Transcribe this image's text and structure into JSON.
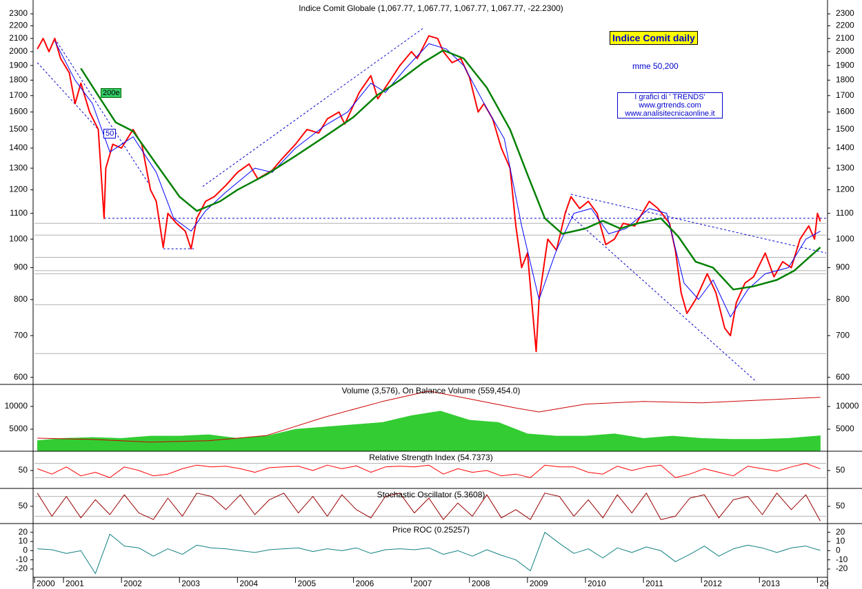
{
  "chart_data": [
    {
      "type": "line",
      "title": "Indice Comit Globale (1,067.77, 1,067.77, 1,067.77, 1,067.77, -22.2300)",
      "log_scale": true,
      "xlim": [
        2000.5,
        2014.15
      ],
      "ylim": [
        586,
        2390
      ],
      "yticks": [
        600,
        700,
        800,
        900,
        1000,
        1100,
        1200,
        1300,
        1400,
        1500,
        1600,
        1700,
        1800,
        1900,
        2000,
        2100,
        2200,
        2300
      ],
      "series": [
        {
          "color": "#ff0000",
          "style": "line",
          "width": 2,
          "x": [
            2000.55,
            2000.65,
            2000.75,
            2000.85,
            2000.95,
            2001.1,
            2001.2,
            2001.3,
            2001.45,
            2001.6,
            2001.7,
            2001.73,
            2001.85,
            2002.0,
            2002.2,
            2002.35,
            2002.5,
            2002.6,
            2002.72,
            2002.8,
            2002.95,
            2003.1,
            2003.2,
            2003.3,
            2003.45,
            2003.6,
            2003.8,
            2004.0,
            2004.2,
            2004.35,
            2004.6,
            2004.75,
            2005.0,
            2005.2,
            2005.4,
            2005.55,
            2005.75,
            2005.85,
            2006.1,
            2006.3,
            2006.42,
            2006.6,
            2006.8,
            2007.0,
            2007.1,
            2007.3,
            2007.45,
            2007.55,
            2007.7,
            2007.85,
            2008.0,
            2008.15,
            2008.25,
            2008.4,
            2008.55,
            2008.7,
            2008.8,
            2008.9,
            2009.0,
            2009.15,
            2009.2,
            2009.35,
            2009.5,
            2009.65,
            2009.75,
            2009.9,
            2010.05,
            2010.2,
            2010.35,
            2010.5,
            2010.65,
            2010.85,
            2011.1,
            2011.25,
            2011.45,
            2011.55,
            2011.65,
            2011.75,
            2011.9,
            2012.1,
            2012.25,
            2012.4,
            2012.5,
            2012.6,
            2012.75,
            2012.9,
            2013.1,
            2013.25,
            2013.4,
            2013.55,
            2013.7,
            2013.85,
            2013.95,
            2014.0,
            2014.05
          ],
          "values": [
            2020,
            2100,
            2000,
            2100,
            1950,
            1850,
            1650,
            1780,
            1600,
            1500,
            1080,
            1300,
            1420,
            1400,
            1500,
            1420,
            1200,
            1150,
            970,
            1100,
            1060,
            1030,
            965,
            1080,
            1150,
            1170,
            1220,
            1280,
            1320,
            1250,
            1290,
            1340,
            1420,
            1500,
            1480,
            1560,
            1600,
            1530,
            1720,
            1830,
            1680,
            1780,
            1900,
            2000,
            1950,
            2120,
            2100,
            2000,
            1920,
            1950,
            1820,
            1600,
            1650,
            1560,
            1400,
            1300,
            1050,
            900,
            950,
            660,
            800,
            1000,
            960,
            1100,
            1170,
            1120,
            1150,
            1100,
            980,
            1000,
            1060,
            1050,
            1150,
            1120,
            1060,
            960,
            820,
            760,
            800,
            880,
            820,
            720,
            700,
            790,
            850,
            870,
            950,
            870,
            920,
            900,
            1000,
            1050,
            1000,
            1100,
            1067.77
          ]
        },
        {
          "name": "50",
          "color": "#0000ff",
          "style": "line",
          "width": 1,
          "x": [
            2000.85,
            2001.2,
            2001.5,
            2001.8,
            2002.2,
            2002.6,
            2002.9,
            2003.2,
            2003.45,
            2003.8,
            2004.3,
            2004.6,
            2005.0,
            2005.5,
            2005.9,
            2006.3,
            2006.55,
            2006.9,
            2007.3,
            2007.6,
            2007.9,
            2008.3,
            2008.6,
            2008.9,
            2009.2,
            2009.5,
            2009.8,
            2010.1,
            2010.4,
            2010.7,
            2011.1,
            2011.4,
            2011.7,
            2011.95,
            2012.2,
            2012.5,
            2012.8,
            2013.1,
            2013.5,
            2013.8,
            2014.05
          ],
          "values": [
            2080,
            1800,
            1650,
            1380,
            1460,
            1280,
            1080,
            1030,
            1110,
            1190,
            1300,
            1280,
            1400,
            1520,
            1600,
            1780,
            1720,
            1880,
            2060,
            2020,
            1900,
            1620,
            1450,
            1050,
            800,
            960,
            1100,
            1120,
            1020,
            1040,
            1120,
            1100,
            850,
            800,
            860,
            750,
            830,
            880,
            900,
            1000,
            1030
          ]
        },
        {
          "name": "200e",
          "color": "#008000",
          "style": "line",
          "width": 2.5,
          "x": [
            2001.3,
            2001.6,
            2001.9,
            2002.2,
            2002.6,
            2003.0,
            2003.3,
            2003.7,
            2004.0,
            2004.5,
            2005.0,
            2005.5,
            2006.0,
            2006.4,
            2006.8,
            2007.2,
            2007.55,
            2007.9,
            2008.3,
            2008.7,
            2009.0,
            2009.3,
            2009.6,
            2010.0,
            2010.3,
            2010.6,
            2010.9,
            2011.3,
            2011.6,
            2011.9,
            2012.2,
            2012.55,
            2012.9,
            2013.3,
            2013.6,
            2014.05
          ],
          "values": [
            1880,
            1700,
            1540,
            1490,
            1320,
            1170,
            1110,
            1150,
            1200,
            1270,
            1360,
            1460,
            1570,
            1700,
            1800,
            1920,
            2010,
            1950,
            1750,
            1500,
            1270,
            1080,
            1020,
            1040,
            1070,
            1040,
            1060,
            1080,
            1010,
            920,
            900,
            830,
            840,
            860,
            890,
            970
          ]
        }
      ],
      "trendlines": [
        {
          "x": [
            2000.55,
            2001.6
          ],
          "y": [
            1920,
            1500
          ]
        },
        {
          "x": [
            2000.85,
            2002.5
          ],
          "y": [
            2100,
            1215
          ]
        },
        {
          "x": [
            2003.4,
            2007.2
          ],
          "y": [
            1215,
            2180
          ]
        },
        {
          "x": [
            2009.75,
            2014.15
          ],
          "y": [
            1180,
            950
          ]
        },
        {
          "x": [
            2009.65,
            2012.95
          ],
          "y": [
            1110,
            590
          ]
        },
        {
          "x": [
            2001.7,
            2014.15
          ],
          "y": [
            1080,
            1080
          ]
        },
        {
          "x": [
            2002.72,
            2003.25
          ],
          "y": [
            965,
            965
          ]
        }
      ],
      "hlines": [
        1060,
        1015,
        935,
        890,
        880,
        785,
        655
      ],
      "annotations": {
        "title_box": "Indice Comit  daily",
        "mme": "mme 50,200",
        "credits": [
          "I grafici di ' TRENDS'",
          "www.grtrends.com",
          "www.analisitecnicaonline.it"
        ]
      }
    },
    {
      "type": "line",
      "title": "Volume (3,576), On Balance Volume (559,454.0)",
      "xlim": [
        2000.5,
        2014.15
      ],
      "ylim": [
        150,
        14550
      ],
      "yticks": [
        5000,
        10000
      ],
      "y2lim": [
        -1500000,
        1000000
      ],
      "series": [
        {
          "color": "#33cc33",
          "style": "area",
          "x": [
            2000.55,
            2001.0,
            2001.5,
            2002.0,
            2002.5,
            2003.0,
            2003.5,
            2004.0,
            2004.5,
            2005.0,
            2005.5,
            2006.0,
            2006.5,
            2007.0,
            2007.5,
            2008.0,
            2008.5,
            2009.0,
            2009.5,
            2010.0,
            2010.5,
            2011.0,
            2011.5,
            2012.0,
            2012.5,
            2013.0,
            2013.5,
            2014.05
          ],
          "values": [
            2500,
            3000,
            3200,
            3000,
            3500,
            3500,
            3800,
            3000,
            3500,
            5000,
            5500,
            6000,
            6500,
            8000,
            9000,
            7000,
            6500,
            4000,
            3500,
            3500,
            4000,
            3000,
            3500,
            3000,
            2800,
            2800,
            3000,
            3576
          ]
        },
        {
          "color": "#cc0000",
          "style": "line",
          "width": 1,
          "axis": "y2",
          "x": [
            2000.55,
            2001.5,
            2002.5,
            2003.5,
            2004.5,
            2005.5,
            2006.5,
            2007.3,
            2008.0,
            2008.8,
            2009.2,
            2010.0,
            2011.0,
            2012.0,
            2013.0,
            2014.05
          ],
          "values": [
            -1000000,
            -1050000,
            -1150000,
            -1100000,
            -900000,
            -200000,
            400000,
            800000,
            500000,
            150000,
            0,
            300000,
            400000,
            350000,
            450000,
            559454
          ]
        }
      ]
    },
    {
      "type": "line",
      "title": "Relative Strength Index (54.7373)",
      "xlim": [
        2000.5,
        2014.15
      ],
      "ylim": [
        0,
        100
      ],
      "yticks": [
        50
      ],
      "hlines": [
        30,
        70
      ],
      "series": [
        {
          "color": "#ff0000",
          "style": "line",
          "width": 1,
          "x": [
            2000.55,
            2000.8,
            2001.05,
            2001.3,
            2001.55,
            2001.8,
            2002.05,
            2002.3,
            2002.55,
            2002.8,
            2003.05,
            2003.3,
            2003.55,
            2003.8,
            2004.05,
            2004.3,
            2004.55,
            2004.8,
            2005.05,
            2005.3,
            2005.55,
            2005.8,
            2006.05,
            2006.3,
            2006.55,
            2006.8,
            2007.05,
            2007.3,
            2007.55,
            2007.8,
            2008.05,
            2008.3,
            2008.55,
            2008.8,
            2009.05,
            2009.3,
            2009.55,
            2009.8,
            2010.05,
            2010.3,
            2010.55,
            2010.8,
            2011.05,
            2011.3,
            2011.55,
            2011.8,
            2012.05,
            2012.3,
            2012.55,
            2012.8,
            2013.05,
            2013.3,
            2013.55,
            2013.8,
            2014.05
          ],
          "values": [
            55,
            40,
            60,
            35,
            45,
            30,
            60,
            50,
            35,
            40,
            55,
            65,
            60,
            62,
            55,
            45,
            58,
            60,
            62,
            50,
            65,
            55,
            63,
            45,
            60,
            62,
            60,
            65,
            40,
            55,
            45,
            50,
            35,
            40,
            30,
            65,
            60,
            60,
            45,
            40,
            62,
            50,
            60,
            65,
            30,
            40,
            55,
            45,
            35,
            62,
            55,
            48,
            60,
            70,
            54.7373
          ]
        }
      ]
    },
    {
      "type": "line",
      "title": "Stochastic Oscillator (5.3608)",
      "xlim": [
        2000.5,
        2014.15
      ],
      "ylim": [
        0,
        100
      ],
      "yticks": [
        50
      ],
      "hlines": [
        20,
        80
      ],
      "series": [
        {
          "color": "#990000",
          "style": "line",
          "width": 1,
          "x": [
            2000.55,
            2000.8,
            2001.05,
            2001.3,
            2001.55,
            2001.8,
            2002.05,
            2002.3,
            2002.55,
            2002.8,
            2003.05,
            2003.3,
            2003.55,
            2003.8,
            2004.05,
            2004.3,
            2004.55,
            2004.8,
            2005.05,
            2005.3,
            2005.55,
            2005.8,
            2006.05,
            2006.3,
            2006.55,
            2006.8,
            2007.05,
            2007.3,
            2007.55,
            2007.8,
            2008.05,
            2008.3,
            2008.55,
            2008.8,
            2009.05,
            2009.3,
            2009.55,
            2009.8,
            2010.05,
            2010.3,
            2010.55,
            2010.8,
            2011.05,
            2011.3,
            2011.55,
            2011.8,
            2012.05,
            2012.3,
            2012.55,
            2012.8,
            2013.05,
            2013.3,
            2013.55,
            2013.8,
            2014.05
          ],
          "values": [
            90,
            20,
            80,
            15,
            70,
            25,
            85,
            30,
            10,
            75,
            20,
            90,
            80,
            40,
            85,
            25,
            70,
            90,
            30,
            80,
            20,
            85,
            40,
            15,
            80,
            90,
            30,
            75,
            10,
            60,
            20,
            85,
            15,
            40,
            10,
            90,
            80,
            20,
            70,
            15,
            85,
            30,
            90,
            10,
            20,
            75,
            85,
            15,
            70,
            80,
            25,
            90,
            40,
            85,
            5.3608
          ]
        }
      ]
    },
    {
      "type": "line",
      "title": "Price ROC (0.25257)",
      "xlim": [
        2000.5,
        2014.15
      ],
      "ylim": [
        -29,
        28
      ],
      "yticks": [
        20,
        10,
        0,
        -10,
        -20
      ],
      "xticks": [
        {
          "value": 2000.5,
          "label": "2000"
        },
        2001,
        2002,
        2003,
        2004,
        2005,
        2006,
        2007,
        2008,
        2009,
        2010,
        2011,
        2012,
        2013,
        {
          "value": 2014,
          "label": "20"
        }
      ],
      "series": [
        {
          "color": "#118080",
          "style": "line",
          "width": 1,
          "x": [
            2000.55,
            2000.8,
            2001.05,
            2001.3,
            2001.55,
            2001.8,
            2002.05,
            2002.3,
            2002.55,
            2002.8,
            2003.05,
            2003.3,
            2003.55,
            2003.8,
            2004.05,
            2004.3,
            2004.55,
            2004.8,
            2005.05,
            2005.3,
            2005.55,
            2005.8,
            2006.05,
            2006.3,
            2006.55,
            2006.8,
            2007.05,
            2007.3,
            2007.55,
            2007.8,
            2008.05,
            2008.3,
            2008.55,
            2008.8,
            2009.05,
            2009.3,
            2009.55,
            2009.8,
            2010.05,
            2010.3,
            2010.55,
            2010.8,
            2011.05,
            2011.3,
            2011.55,
            2011.8,
            2012.05,
            2012.3,
            2012.55,
            2012.8,
            2013.05,
            2013.3,
            2013.55,
            2013.8,
            2014.05
          ],
          "values": [
            2,
            1,
            -3,
            0,
            -25,
            18,
            5,
            3,
            -6,
            2,
            -4,
            6,
            3,
            2,
            0,
            -2,
            1,
            2,
            3,
            -1,
            2,
            0,
            3,
            -3,
            1,
            2,
            1,
            3,
            -4,
            0,
            -6,
            1,
            -5,
            -10,
            -22,
            20,
            8,
            -3,
            2,
            -8,
            3,
            -2,
            4,
            0,
            -12,
            -4,
            5,
            -6,
            2,
            6,
            3,
            -2,
            3,
            5,
            0.25257
          ]
        }
      ]
    }
  ]
}
